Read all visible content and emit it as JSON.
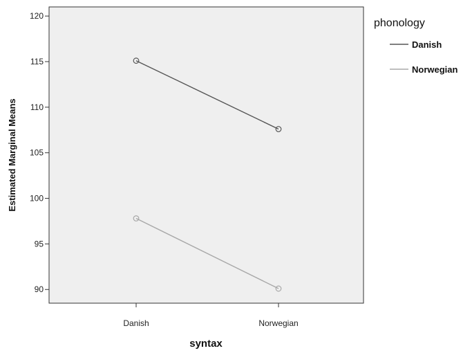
{
  "chart_data": {
    "type": "line",
    "title": "",
    "xlabel": "syntax",
    "ylabel": "Estimated Marginal Means",
    "categories": [
      "Danish",
      "Norwegian"
    ],
    "ylim": [
      88.5,
      121
    ],
    "yticks": [
      90,
      95,
      100,
      105,
      110,
      115,
      120
    ],
    "grid": false,
    "plot_background": "#efefef",
    "legend": {
      "title": "phonology",
      "position": "right"
    },
    "series": [
      {
        "name": "Danish",
        "values": [
          115.1,
          107.6
        ],
        "color": "#555555"
      },
      {
        "name": "Norwegian",
        "values": [
          97.8,
          90.1
        ],
        "color": "#a8a8a8"
      }
    ]
  }
}
